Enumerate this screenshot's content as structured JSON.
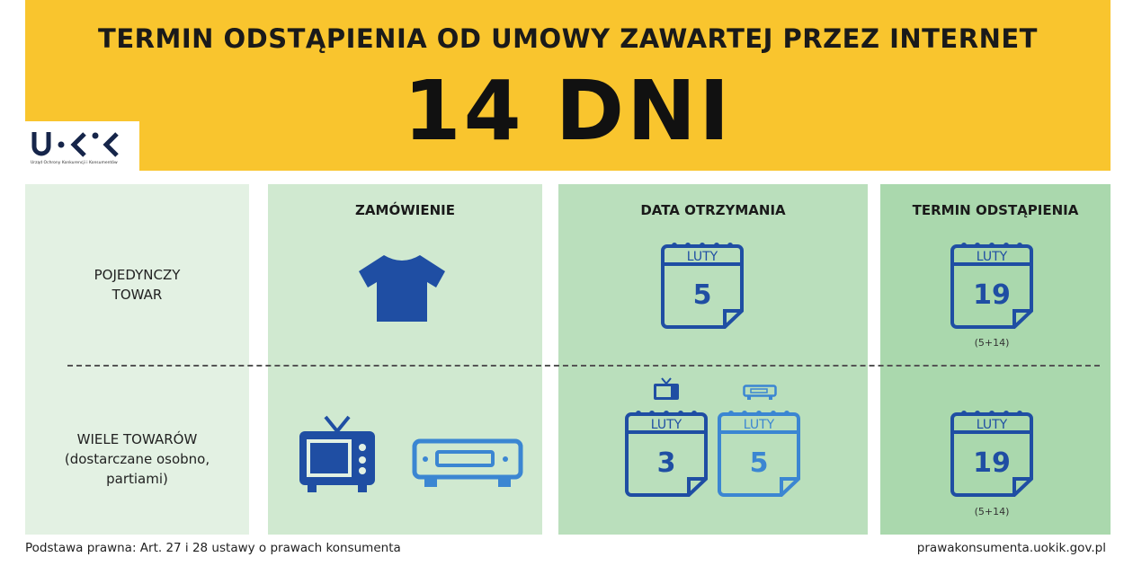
{
  "header": {
    "title": "TERMIN ODSTĄPIENIA OD UMOWY ZAWARTEJ PRZEZ INTERNET",
    "big": "14 DNI"
  },
  "logo": {
    "text": "U·K·K",
    "caption": "Urząd Ochrony Konkurencji i Konsumentów"
  },
  "columns": [
    "ZAMÓWIENIE",
    "DATA OTRZYMANIA",
    "TERMIN ODSTĄPIENIA"
  ],
  "rows": [
    {
      "label_lines": [
        "POJEDYNCZY",
        "TOWAR"
      ],
      "icons": [
        "t-shirt-icon"
      ],
      "received": [
        {
          "month": "LUTY",
          "day": "5"
        }
      ],
      "deadline": {
        "month": "LUTY",
        "day": "19",
        "note": "(5+14)"
      }
    },
    {
      "label_lines": [
        "WIELE TOWARÓW",
        "(dostarczane osobno,",
        "partiami)"
      ],
      "icons": [
        "tv-icon",
        "dvd-player-icon"
      ],
      "received": [
        {
          "month": "LUTY",
          "day": "3",
          "icon": "tv-icon"
        },
        {
          "month": "LUTY",
          "day": "5",
          "icon": "dvd-player-icon"
        }
      ],
      "deadline": {
        "month": "LUTY",
        "day": "19",
        "note": "(5+14)"
      }
    }
  ],
  "footer": {
    "left": "Podstawa prawna: Art. 27 i 28 ustawy o prawach konsumenta",
    "right": "prawakonsumenta.uokik.gov.pl"
  },
  "colors": {
    "yellow": "#f9c52e",
    "dark_blue": "#1f4ea3",
    "light_blue": "#3b86d2"
  }
}
